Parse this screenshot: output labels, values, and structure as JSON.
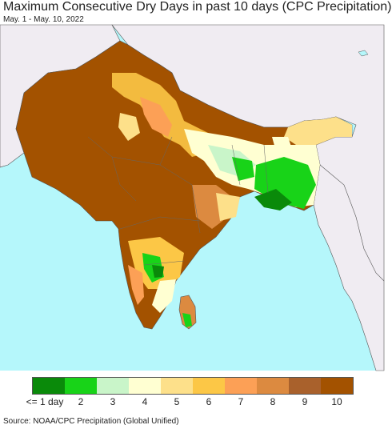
{
  "title": "Maximum Consecutive Dry Days in past 10 days (CPC Precipitation)",
  "date_range": "May. 1 - May. 10, 2022",
  "source": "Source: NOAA/CPC Precipitation (Global Unified)",
  "legend": {
    "colors": [
      "#0a8a0a",
      "#18d318",
      "#c9f5c9",
      "#ffffd2",
      "#fde08a",
      "#fcc746",
      "#fca056",
      "#dc8a40",
      "#a9612c",
      "#a35200"
    ],
    "labels": [
      "<= 1 day",
      "2",
      "3",
      "4",
      "5",
      "6",
      "7",
      "8",
      "9",
      "10"
    ]
  },
  "palette": {
    "ocean": "#b5f7fb",
    "outside_land": "#f0ecf2",
    "borders": "#555555"
  }
}
